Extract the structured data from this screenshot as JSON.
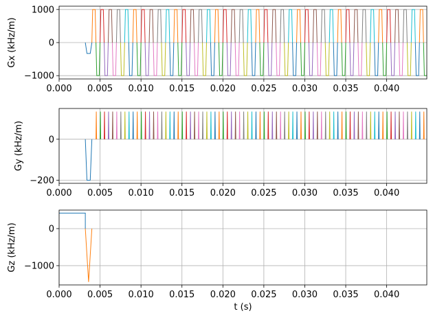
{
  "chart_data": [
    {
      "type": "line",
      "ylabel": "Gx (kHz/m)",
      "xlim": [
        0,
        0.0449
      ],
      "ylim": [
        -1100,
        1100
      ],
      "xticks": [
        0.0,
        0.005,
        0.01,
        0.015,
        0.02,
        0.025,
        0.03,
        0.035,
        0.04
      ],
      "xtick_labels": [
        "0.000",
        "0.005",
        "0.010",
        "0.015",
        "0.020",
        "0.025",
        "0.030",
        "0.035",
        "0.040"
      ],
      "yticks": [
        -1000,
        0,
        1000
      ],
      "ytick_labels": [
        "−1000",
        "0",
        "1000"
      ],
      "grid": true,
      "prephaser": {
        "t_start": 0.0032,
        "t_end": 0.004,
        "amplitude": -330
      },
      "readout": {
        "t_start": 0.004,
        "period": 0.0005,
        "count": 82,
        "amplitude": 1000,
        "ramp": 0.0001
      }
    },
    {
      "type": "line",
      "ylabel": "Gy (kHz/m)",
      "xlim": [
        0,
        0.0449
      ],
      "ylim": [
        -215,
        150
      ],
      "xticks": [
        0.0,
        0.005,
        0.01,
        0.015,
        0.02,
        0.025,
        0.03,
        0.035,
        0.04
      ],
      "xtick_labels": [
        "0.000",
        "0.005",
        "0.010",
        "0.015",
        "0.020",
        "0.025",
        "0.030",
        "0.035",
        "0.040"
      ],
      "yticks": [
        -200,
        0
      ],
      "ytick_labels": [
        "−200",
        "0"
      ],
      "grid": true,
      "prephaser": {
        "t_start": 0.0032,
        "t_end": 0.004,
        "amplitude": -200
      },
      "blips": {
        "t_start": 0.0045,
        "period": 0.0005,
        "count": 81,
        "amplitude": 135,
        "width": 8e-05
      }
    },
    {
      "type": "line",
      "xlabel": "t (s)",
      "ylabel": "Gz (kHz/m)",
      "xlim": [
        0,
        0.0449
      ],
      "ylim": [
        -1520,
        500
      ],
      "xticks": [
        0.0,
        0.005,
        0.01,
        0.015,
        0.02,
        0.025,
        0.03,
        0.035,
        0.04
      ],
      "xtick_labels": [
        "0.000",
        "0.005",
        "0.010",
        "0.015",
        "0.020",
        "0.025",
        "0.030",
        "0.035",
        "0.040"
      ],
      "yticks": [
        -1000,
        0
      ],
      "ytick_labels": [
        "−1000",
        "0"
      ],
      "grid": true,
      "slice_select": {
        "t_start": 0.0,
        "t_end": 0.0032,
        "amplitude": 420
      },
      "rephaser": {
        "t_start": 0.0032,
        "t_peak": 0.0036,
        "t_end": 0.004,
        "amplitude": -1440
      }
    }
  ],
  "palette": [
    "#1f77b4",
    "#ff7f0e",
    "#2ca02c",
    "#d62728",
    "#9467bd",
    "#8c564b",
    "#e377c2",
    "#7f7f7f",
    "#bcbd22",
    "#17becf"
  ]
}
